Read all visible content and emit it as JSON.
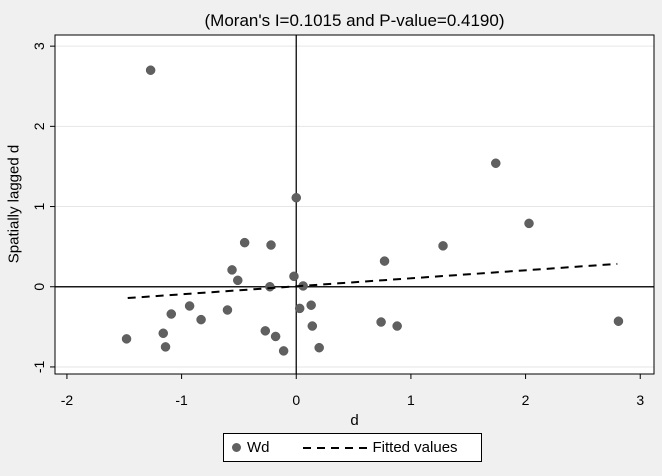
{
  "colors": {
    "figure_background": "#f0f0f0",
    "plot_background": "#ffffff",
    "gridline": "#e6e6e6",
    "axis_line": "#000000",
    "reference_line": "#1a1a1a",
    "marker": "#606060",
    "marker_edge": "#525252",
    "fitted_line": "#000000",
    "text": "#000000"
  },
  "chart_data": {
    "type": "scatter",
    "title": "(Moran's I=0.1015 and P-value=0.4190)",
    "xlabel": "d",
    "ylabel": "Spatially lagged d",
    "xlim": [
      -2.104,
      3.12
    ],
    "ylim": [
      -1.088,
      3.139
    ],
    "xticks": [
      {
        "value": -2,
        "label": "-2"
      },
      {
        "value": -1,
        "label": "-1"
      },
      {
        "value": 0,
        "label": "0"
      },
      {
        "value": 1,
        "label": "1"
      },
      {
        "value": 2,
        "label": "2"
      },
      {
        "value": 3,
        "label": "3"
      }
    ],
    "yticks": [
      {
        "value": 3,
        "label": "3"
      },
      {
        "value": 2,
        "label": "2"
      },
      {
        "value": 1,
        "label": "1"
      },
      {
        "value": 0,
        "label": "0"
      },
      {
        "value": -1,
        "label": "-1"
      }
    ],
    "grid": "horizontal gridlines only",
    "reference_lines": {
      "vertical_at_x": 0,
      "horizontal_at_y": 0
    },
    "legend": {
      "position": "bottom-center",
      "entries": [
        "Wd",
        "Fitted values"
      ]
    },
    "stats": {
      "morans_i": 0.1015,
      "p_value": 0.419
    },
    "series": [
      {
        "name": "Wd",
        "type": "scatter",
        "marker": "circle",
        "color": "#606060",
        "points": [
          [
            -1.27,
            2.7
          ],
          [
            0.0,
            1.11
          ],
          [
            1.74,
            1.54
          ],
          [
            2.03,
            0.79
          ],
          [
            1.28,
            0.51
          ],
          [
            0.77,
            0.32
          ],
          [
            -0.45,
            0.55
          ],
          [
            -0.22,
            0.52
          ],
          [
            -0.56,
            0.21
          ],
          [
            -0.51,
            0.08
          ],
          [
            -0.23,
            0.0
          ],
          [
            -0.02,
            0.13
          ],
          [
            0.06,
            0.01
          ],
          [
            0.03,
            -0.27
          ],
          [
            0.13,
            -0.23
          ],
          [
            0.14,
            -0.49
          ],
          [
            0.2,
            -0.76
          ],
          [
            -0.27,
            -0.55
          ],
          [
            -0.18,
            -0.62
          ],
          [
            -0.11,
            -0.8
          ],
          [
            -1.48,
            -0.65
          ],
          [
            -1.09,
            -0.34
          ],
          [
            -0.93,
            -0.24
          ],
          [
            -0.83,
            -0.41
          ],
          [
            -1.16,
            -0.58
          ],
          [
            -1.14,
            -0.75
          ],
          [
            -0.6,
            -0.29
          ],
          [
            0.74,
            -0.44
          ],
          [
            0.88,
            -0.49
          ],
          [
            2.81,
            -0.43
          ]
        ]
      },
      {
        "name": "Fitted values",
        "type": "line",
        "style": "dashed",
        "color": "#000000",
        "slope": 0.1015,
        "intercept": 0.006,
        "x": [
          -1.47,
          2.8
        ],
        "y": [
          -0.141,
          0.285
        ]
      }
    ]
  }
}
